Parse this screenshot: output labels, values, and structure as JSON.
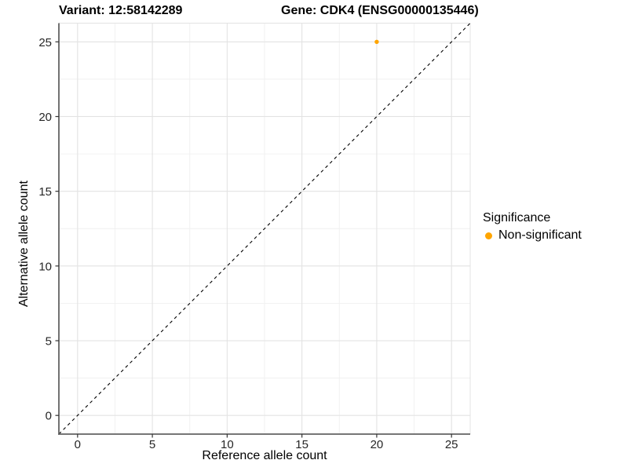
{
  "chart_data": {
    "type": "scatter",
    "titles": {
      "left": "Variant: 12:58142289",
      "right": "Gene: CDK4 (ENSG00000135446)"
    },
    "xlabel": "Reference allele count",
    "ylabel": "Alternative allele count",
    "xlim": [
      -1.25,
      26.25
    ],
    "ylim": [
      -1.25,
      26.25
    ],
    "x_major_ticks": [
      0,
      5,
      10,
      15,
      20,
      25
    ],
    "y_major_ticks": [
      0,
      5,
      10,
      15,
      20,
      25
    ],
    "x_minor_ticks": [
      2.5,
      7.5,
      12.5,
      17.5,
      22.5
    ],
    "y_minor_ticks": [
      2.5,
      7.5,
      12.5,
      17.5,
      22.5
    ],
    "grid": {
      "major": true,
      "minor": true
    },
    "series": [
      {
        "name": "Non-significant",
        "color": "#FFA500",
        "marker": "circle",
        "points": [
          {
            "x": 20,
            "y": 25
          }
        ]
      }
    ],
    "reference_line": {
      "kind": "identity",
      "style": "dashed",
      "color": "#000000",
      "x1": -1.25,
      "y1": -1.25,
      "x2": 26.25,
      "y2": 26.25
    },
    "legend": {
      "title": "Significance",
      "position": "right",
      "items": [
        {
          "label": "Non-significant",
          "color": "#FFA500"
        }
      ]
    }
  }
}
